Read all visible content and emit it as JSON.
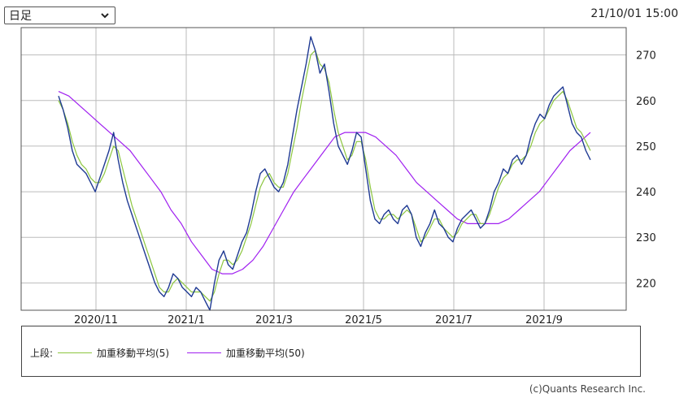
{
  "controls": {
    "period_selected": "日足",
    "timestamp": "21/10/01 15:00"
  },
  "legend": {
    "label": "上段:",
    "items": [
      {
        "name": "加重移動平均(5)",
        "color": "#8cc63f"
      },
      {
        "name": "加重移動平均(50)",
        "color": "#a020f0"
      }
    ]
  },
  "credit": "(c)Quants Research Inc.",
  "colors": {
    "price": "#1f3a93",
    "grid": "#bbbbbb"
  },
  "chart_data": {
    "type": "line",
    "x_axis": {
      "ticks": [
        "2020/11",
        "2021/1",
        "2021/3",
        "2021/5",
        "2021/7",
        "2021/9"
      ]
    },
    "y_axis": {
      "position": "right",
      "ticks": [
        220,
        230,
        240,
        250,
        260,
        270
      ],
      "ylim": [
        214,
        276
      ]
    },
    "grid": true,
    "series": [
      {
        "name": "",
        "style": "price",
        "values": [
          261,
          258,
          254,
          249,
          246,
          245,
          244,
          242,
          240,
          243,
          246,
          249,
          253,
          247,
          242,
          238,
          235,
          232,
          229,
          226,
          223,
          220,
          218,
          217,
          219,
          222,
          221,
          219,
          218,
          217,
          219,
          218,
          216,
          214,
          220,
          225,
          227,
          224,
          223,
          226,
          229,
          231,
          235,
          240,
          244,
          245,
          243,
          241,
          240,
          242,
          246,
          252,
          258,
          263,
          268,
          274,
          271,
          266,
          268,
          262,
          255,
          250,
          248,
          246,
          249,
          253,
          252,
          245,
          238,
          234,
          233,
          235,
          236,
          234,
          233,
          236,
          237,
          235,
          230,
          228,
          231,
          233,
          236,
          233,
          232,
          230,
          229,
          232,
          234,
          235,
          236,
          234,
          232,
          233,
          236,
          240,
          242,
          245,
          244,
          247,
          248,
          246,
          248,
          252,
          255,
          257,
          256,
          259,
          261,
          262,
          263,
          259,
          255,
          253,
          252,
          249,
          247
        ]
      },
      {
        "name": "加重移動平均(5)",
        "style": "wma5",
        "values": [
          260,
          258,
          255,
          251,
          248,
          246,
          245,
          243,
          242,
          242,
          244,
          247,
          250,
          249,
          245,
          241,
          237,
          234,
          231,
          228,
          225,
          222,
          219,
          218,
          218,
          220,
          221,
          220,
          219,
          218,
          218,
          218,
          217,
          216,
          218,
          222,
          225,
          225,
          224,
          225,
          227,
          230,
          233,
          237,
          241,
          243,
          244,
          242,
          241,
          241,
          244,
          249,
          254,
          260,
          265,
          270,
          271,
          268,
          267,
          264,
          258,
          253,
          250,
          247,
          248,
          251,
          251,
          247,
          241,
          236,
          234,
          234,
          235,
          235,
          234,
          235,
          236,
          235,
          232,
          229,
          230,
          232,
          234,
          234,
          232,
          231,
          230,
          231,
          233,
          234,
          235,
          235,
          233,
          233,
          235,
          238,
          241,
          243,
          244,
          246,
          247,
          247,
          248,
          250,
          253,
          255,
          256,
          258,
          260,
          261,
          262,
          260,
          257,
          254,
          253,
          251,
          249
        ]
      },
      {
        "name": "加重移動平均(50)",
        "style": "wma50",
        "values": [
          262,
          261,
          259,
          257,
          255,
          253,
          251,
          249,
          246,
          243,
          240,
          236,
          233,
          229,
          226,
          223,
          222,
          222,
          223,
          225,
          228,
          232,
          236,
          240,
          243,
          246,
          249,
          252,
          253,
          253,
          253,
          252,
          250,
          248,
          245,
          242,
          240,
          238,
          236,
          234,
          233,
          233,
          233,
          233,
          234,
          236,
          238,
          240,
          243,
          246,
          249,
          251,
          253
        ]
      }
    ]
  }
}
